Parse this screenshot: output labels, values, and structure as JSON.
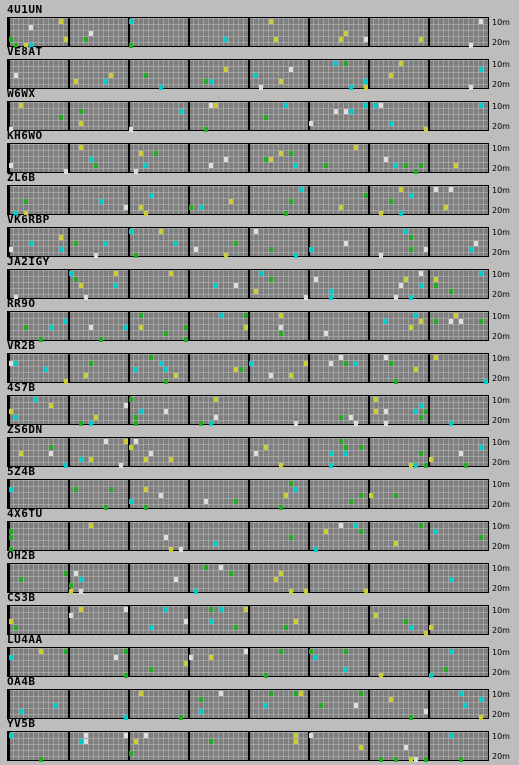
{
  "bands": {
    "top": "10m",
    "bottom": "20m"
  },
  "colors": {
    "grid": "#7f7f7f",
    "levels": [
      "#00cccc",
      "#cccc33",
      "#22aa22",
      "#dddddd"
    ]
  },
  "stations": [
    {
      "callsign": "4U1UN"
    },
    {
      "callsign": "VE8AT"
    },
    {
      "callsign": "W6WX"
    },
    {
      "callsign": "KH6WO"
    },
    {
      "callsign": "ZL6B"
    },
    {
      "callsign": "VK6RBP"
    },
    {
      "callsign": "JA2IGY"
    },
    {
      "callsign": "RR9O"
    },
    {
      "callsign": "VR2B"
    },
    {
      "callsign": "4S7B"
    },
    {
      "callsign": "ZS6DN"
    },
    {
      "callsign": "5Z4B"
    },
    {
      "callsign": "4X6TU"
    },
    {
      "callsign": "OH2B"
    },
    {
      "callsign": "CS3B"
    },
    {
      "callsign": "LU4AA"
    },
    {
      "callsign": "OA4B"
    },
    {
      "callsign": "YV5B"
    }
  ]
}
